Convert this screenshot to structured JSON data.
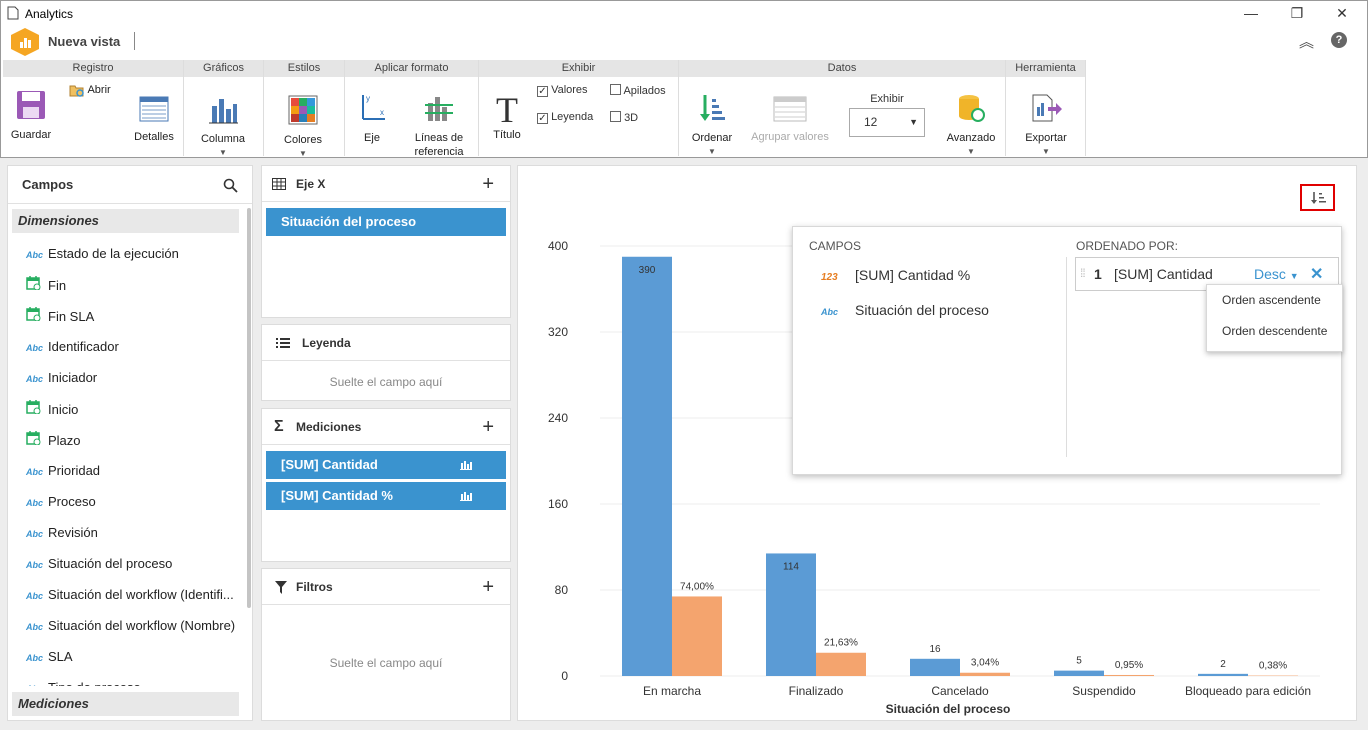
{
  "window": {
    "title": "Analytics",
    "minimize": "—",
    "restore": "❐",
    "close": "✕"
  },
  "app": {
    "view_name": "Nueva vista",
    "collapse": "︽",
    "help": "?"
  },
  "ribbon": {
    "groups": {
      "registro": "Registro",
      "graficos": "Gráficos",
      "estilos": "Estilos",
      "aplicar": "Aplicar formato",
      "exhibir": "Exhibir",
      "datos": "Datos",
      "herramienta": "Herramienta"
    },
    "guardar": "Guardar",
    "abrir": "Abrir",
    "detalles": "Detalles",
    "columna": "Columna",
    "colores": "Colores",
    "eje": "Eje",
    "lineas1": "Líneas de",
    "lineas2": "referencia",
    "titulo": "Título",
    "valores": "Valores",
    "leyenda": "Leyenda",
    "apilados": "Apilados",
    "td": "3D",
    "ordenar": "Ordenar",
    "agrupar": "Agrupar valores",
    "exhibir_label": "Exhibir",
    "exhibir_value": "12",
    "avanzado": "Avanzado",
    "exportar": "Exportar"
  },
  "campos": {
    "title": "Campos",
    "dimensiones": "Dimensiones",
    "mediciones": "Mediciones",
    "items": [
      {
        "icon": "abc",
        "label": "Estado de la ejecución"
      },
      {
        "icon": "calendar",
        "label": "Fin"
      },
      {
        "icon": "calendar",
        "label": "Fin SLA"
      },
      {
        "icon": "abc",
        "label": "Identificador"
      },
      {
        "icon": "abc",
        "label": "Iniciador"
      },
      {
        "icon": "calendar",
        "label": "Inicio"
      },
      {
        "icon": "calendar",
        "label": "Plazo"
      },
      {
        "icon": "abc",
        "label": "Prioridad"
      },
      {
        "icon": "abc",
        "label": "Proceso"
      },
      {
        "icon": "abc",
        "label": "Revisión"
      },
      {
        "icon": "abc",
        "label": "Situación del proceso"
      },
      {
        "icon": "abc",
        "label": "Situación del workflow (Identifi..."
      },
      {
        "icon": "abc",
        "label": "Situación del workflow (Nombre)"
      },
      {
        "icon": "abc",
        "label": "SLA"
      },
      {
        "icon": "abc",
        "label": "Tipo de proceso"
      }
    ]
  },
  "abc_icon": "Abc",
  "ejex": {
    "title": "Eje X",
    "chip": "Situación del proceso"
  },
  "leyenda": {
    "title": "Leyenda",
    "drop": "Suelte el campo aquí"
  },
  "mediciones": {
    "title": "Mediciones",
    "chips": [
      "[SUM] Cantidad",
      "[SUM] Cantidad %"
    ]
  },
  "filtros": {
    "title": "Filtros",
    "drop": "Suelte el campo aquí"
  },
  "sortpanel": {
    "campos_title": "CAMPOS",
    "campos": [
      {
        "icon": "123",
        "label": "[SUM] Cantidad %"
      },
      {
        "icon": "Abc",
        "label": "Situación del proceso"
      }
    ],
    "ordenado_title": "ORDENADO POR:",
    "order_num": "1",
    "order_field": "[SUM] Cantidad",
    "order_dir": "Desc",
    "menu": [
      "Orden ascendente",
      "Orden descendente"
    ]
  },
  "colors": {
    "blue": "#5b9bd5",
    "orange": "#f4a46e",
    "accent": "#3a93cf",
    "highlight": "#e00000"
  },
  "chart_data": {
    "type": "bar",
    "xlabel": "Situación del proceso",
    "categories": [
      "En marcha",
      "Finalizado",
      "Cancelado",
      "Suspendido",
      "Bloqueado para edición"
    ],
    "ylim": [
      0,
      400
    ],
    "yticks": [
      0,
      80,
      160,
      240,
      320,
      400
    ],
    "series": [
      {
        "name": "[SUM] Cantidad",
        "values": [
          390,
          114,
          16,
          5,
          2
        ],
        "labels": [
          "390",
          "114",
          "16",
          "5",
          "2"
        ]
      },
      {
        "name": "[SUM] Cantidad %",
        "values": [
          74.0,
          21.63,
          3.04,
          0.95,
          0.38
        ],
        "labels": [
          "74,00%",
          "21,63%",
          "3,04%",
          "0,95%",
          "0,38%"
        ]
      }
    ]
  }
}
